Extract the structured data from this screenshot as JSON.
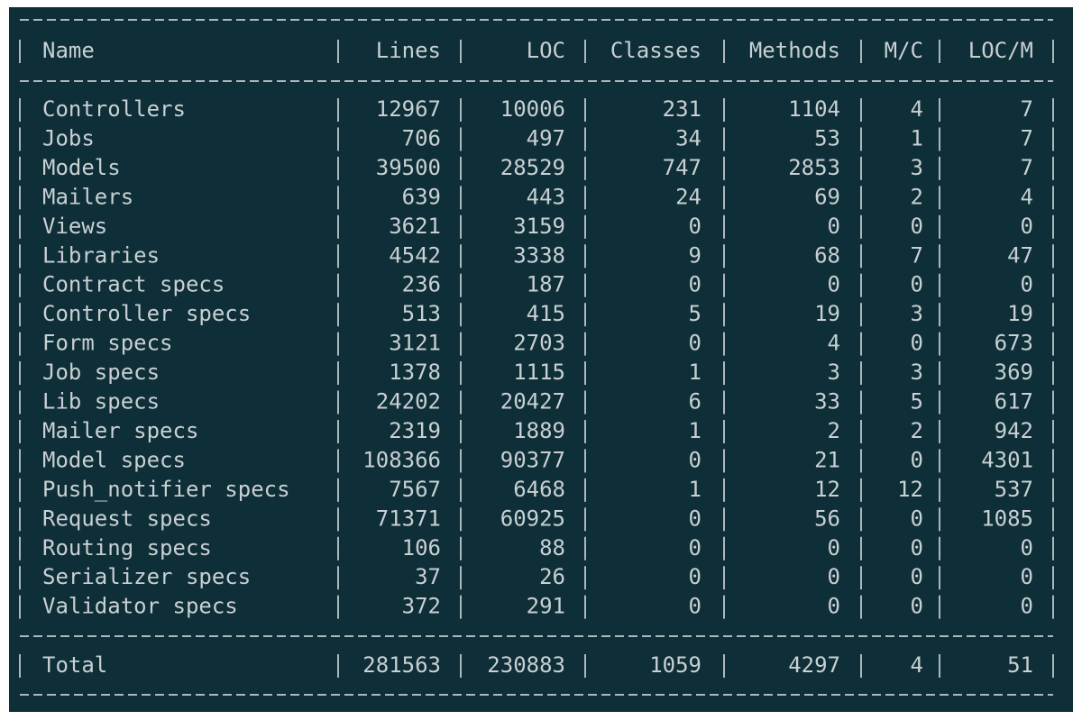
{
  "table": {
    "columns": [
      "Name",
      "Lines",
      "LOC",
      "Classes",
      "Methods",
      "M/C",
      "LOC/M"
    ],
    "rows": [
      [
        "Controllers",
        12967,
        10006,
        231,
        1104,
        4,
        7
      ],
      [
        "Jobs",
        706,
        497,
        34,
        53,
        1,
        7
      ],
      [
        "Models",
        39500,
        28529,
        747,
        2853,
        3,
        7
      ],
      [
        "Mailers",
        639,
        443,
        24,
        69,
        2,
        4
      ],
      [
        "Views",
        3621,
        3159,
        0,
        0,
        0,
        0
      ],
      [
        "Libraries",
        4542,
        3338,
        9,
        68,
        7,
        47
      ],
      [
        "Contract specs",
        236,
        187,
        0,
        0,
        0,
        0
      ],
      [
        "Controller specs",
        513,
        415,
        5,
        19,
        3,
        19
      ],
      [
        "Form specs",
        3121,
        2703,
        0,
        4,
        0,
        673
      ],
      [
        "Job specs",
        1378,
        1115,
        1,
        3,
        3,
        369
      ],
      [
        "Lib specs",
        24202,
        20427,
        6,
        33,
        5,
        617
      ],
      [
        "Mailer specs",
        2319,
        1889,
        1,
        2,
        2,
        942
      ],
      [
        "Model specs",
        108366,
        90377,
        0,
        21,
        0,
        4301
      ],
      [
        "Push_notifier specs",
        7567,
        6468,
        1,
        12,
        12,
        537
      ],
      [
        "Request specs",
        71371,
        60925,
        0,
        56,
        0,
        1085
      ],
      [
        "Routing specs",
        106,
        88,
        0,
        0,
        0,
        0
      ],
      [
        "Serializer specs",
        37,
        26,
        0,
        0,
        0,
        0
      ],
      [
        "Validator specs",
        372,
        291,
        0,
        0,
        0,
        0
      ]
    ],
    "total": [
      "Total",
      281563,
      230883,
      1059,
      4297,
      4,
      51
    ]
  }
}
